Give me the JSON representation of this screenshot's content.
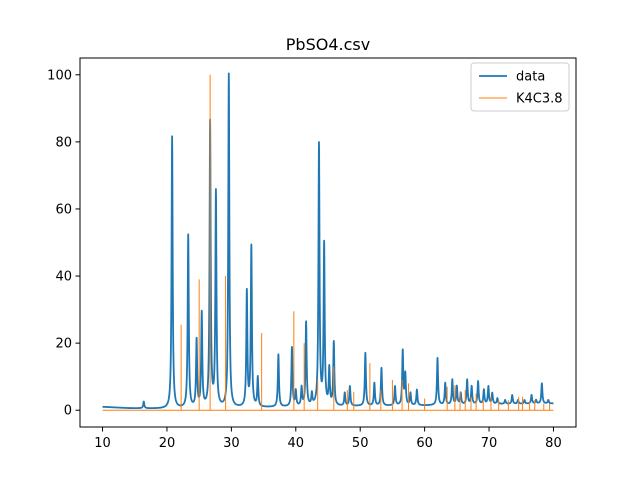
{
  "chart_data": {
    "type": "line",
    "title": "PbSO4.csv",
    "xlabel": "",
    "ylabel": "",
    "xlim": [
      6.5,
      83.5
    ],
    "ylim": [
      -5,
      105
    ],
    "xticks": [
      10,
      20,
      30,
      40,
      50,
      60,
      70,
      80
    ],
    "yticks": [
      0,
      20,
      40,
      60,
      80,
      100
    ],
    "grid": false,
    "legend_position": "top-right",
    "series": [
      {
        "name": "data",
        "style": "line",
        "color": "#1f77b4",
        "baseline": [
          [
            10,
            1.0
          ],
          [
            14,
            0.6
          ],
          [
            20,
            0.4
          ],
          [
            30,
            0.6
          ],
          [
            40,
            1.0
          ],
          [
            50,
            1.2
          ],
          [
            60,
            1.4
          ],
          [
            70,
            1.8
          ],
          [
            80,
            2.0
          ]
        ],
        "peaks": [
          [
            16.4,
            2.5
          ],
          [
            20.8,
            81.5
          ],
          [
            23.3,
            52
          ],
          [
            24.6,
            20.5
          ],
          [
            25.4,
            28.5
          ],
          [
            26.7,
            85.5
          ],
          [
            27.6,
            64.5
          ],
          [
            29.6,
            100
          ],
          [
            32.4,
            35
          ],
          [
            33.1,
            48.5
          ],
          [
            34.1,
            9.5
          ],
          [
            37.3,
            16.5
          ],
          [
            39.4,
            18.5
          ],
          [
            40.0,
            5.5
          ],
          [
            40.9,
            6.5
          ],
          [
            41.6,
            26
          ],
          [
            42.5,
            4.5
          ],
          [
            43.6,
            79
          ],
          [
            44.4,
            49
          ],
          [
            45.2,
            12
          ],
          [
            45.9,
            20
          ],
          [
            47.6,
            5
          ],
          [
            48.4,
            7
          ],
          [
            50.8,
            17
          ],
          [
            52.2,
            8
          ],
          [
            53.3,
            12.5
          ],
          [
            55.4,
            7
          ],
          [
            56.6,
            17.5
          ],
          [
            57.0,
            10.5
          ],
          [
            57.8,
            5
          ],
          [
            58.8,
            6
          ],
          [
            62.0,
            15.5
          ],
          [
            63.2,
            8
          ],
          [
            64.3,
            9
          ],
          [
            65.0,
            7
          ],
          [
            65.6,
            5
          ],
          [
            66.6,
            9
          ],
          [
            67.3,
            7
          ],
          [
            68.3,
            8.5
          ],
          [
            69.2,
            6
          ],
          [
            69.9,
            7
          ],
          [
            70.5,
            5
          ],
          [
            71.3,
            3.5
          ],
          [
            72.5,
            3
          ],
          [
            73.6,
            4.5
          ],
          [
            74.5,
            3
          ],
          [
            75.5,
            3
          ],
          [
            76.6,
            4.5
          ],
          [
            77.3,
            3
          ],
          [
            78.2,
            8
          ],
          [
            79.2,
            3
          ]
        ]
      },
      {
        "name": "K4C3.8",
        "style": "sticks",
        "color": "#ff7f0e",
        "peaks": [
          [
            22.2,
            25.5
          ],
          [
            25.0,
            39
          ],
          [
            26.7,
            100
          ],
          [
            29.1,
            40
          ],
          [
            34.7,
            23
          ],
          [
            39.7,
            29.5
          ],
          [
            41.3,
            20
          ],
          [
            43.4,
            9
          ],
          [
            45.9,
            13
          ],
          [
            48.0,
            6
          ],
          [
            49.0,
            5.5
          ],
          [
            51.5,
            14
          ],
          [
            53.2,
            6
          ],
          [
            55.0,
            9
          ],
          [
            56.5,
            9
          ],
          [
            57.5,
            8
          ],
          [
            60.0,
            3.5
          ],
          [
            63.5,
            7
          ],
          [
            64.7,
            7.5
          ],
          [
            65.5,
            5.5
          ],
          [
            66.3,
            6
          ],
          [
            67.2,
            4
          ],
          [
            68.0,
            5
          ],
          [
            69.1,
            3
          ],
          [
            70.3,
            4
          ],
          [
            71.5,
            3
          ],
          [
            73.0,
            3
          ],
          [
            74.6,
            4
          ],
          [
            75.2,
            4
          ],
          [
            76.3,
            2.5
          ],
          [
            77.1,
            3
          ],
          [
            78.5,
            2
          ],
          [
            79.4,
            2
          ]
        ]
      }
    ]
  }
}
